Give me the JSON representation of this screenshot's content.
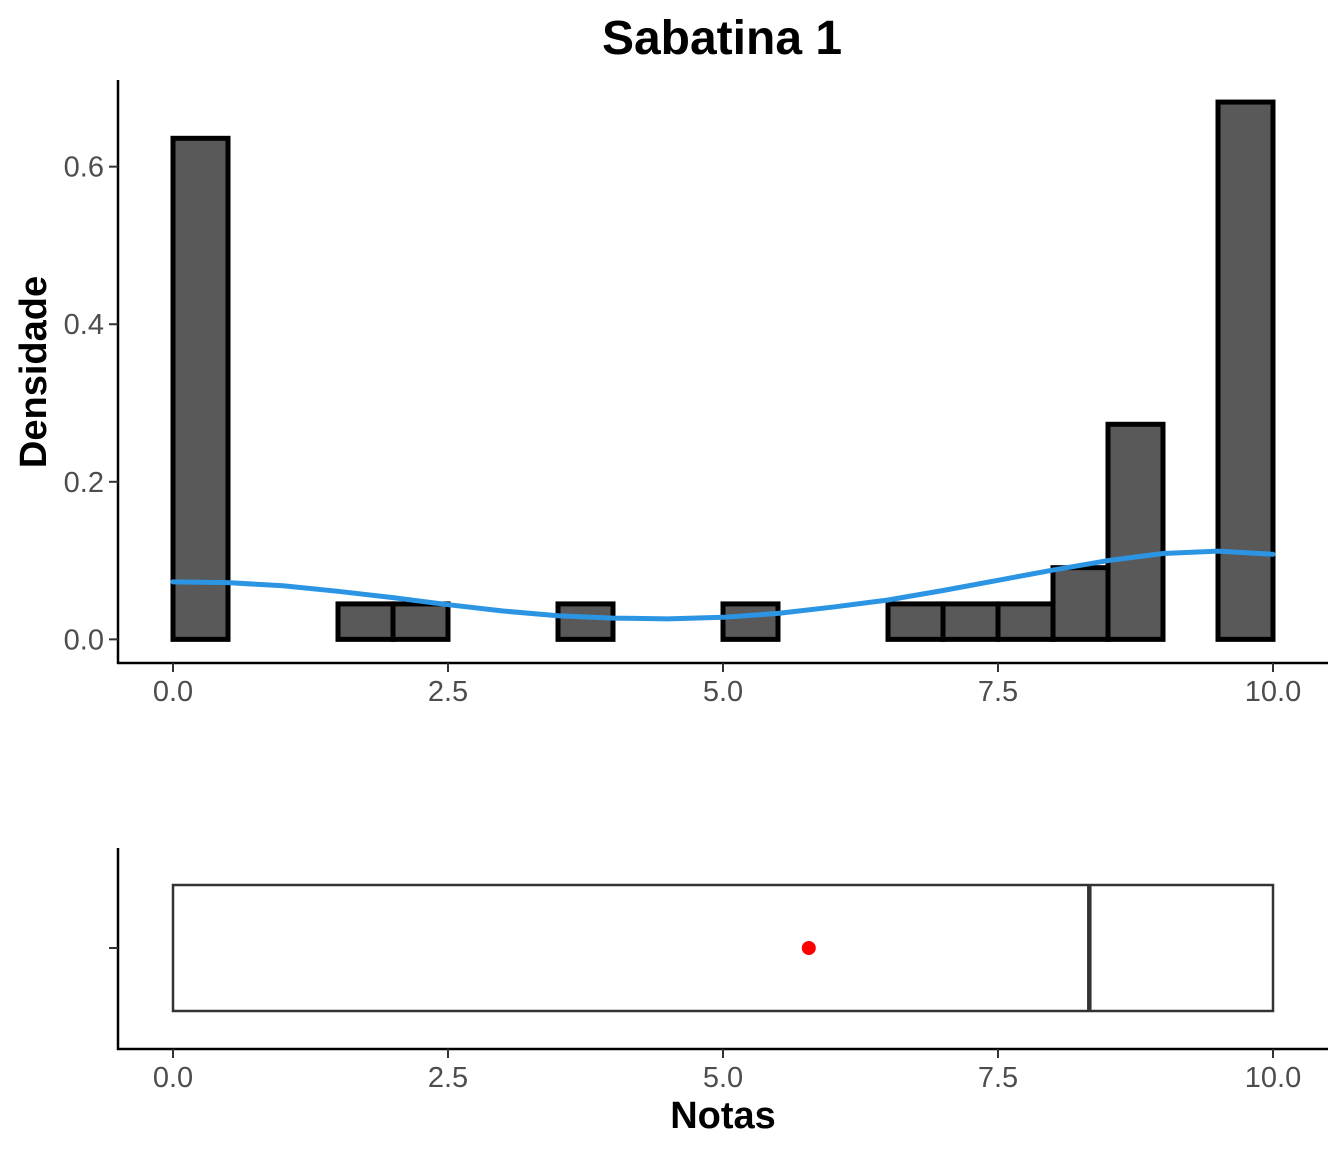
{
  "chart_data": [
    {
      "type": "bar",
      "title": "Sabatina 1",
      "xlabel": "",
      "ylabel": "Densidade",
      "xlim": [
        -0.5,
        10.5
      ],
      "ylim": [
        -0.03,
        0.71
      ],
      "x_ticks": [
        0.0,
        2.5,
        5.0,
        7.5,
        10.0
      ],
      "x_tick_labels": [
        "0.0",
        "2.5",
        "5.0",
        "7.5",
        "10.0"
      ],
      "y_ticks": [
        0.0,
        0.2,
        0.4,
        0.6
      ],
      "y_tick_labels": [
        "0.0",
        "0.2",
        "0.4",
        "0.6"
      ],
      "bin_width": 0.5,
      "bins": [
        {
          "start": 0.0,
          "end": 0.5,
          "density": 0.636
        },
        {
          "start": 0.5,
          "end": 1.0,
          "density": 0.0
        },
        {
          "start": 1.0,
          "end": 1.5,
          "density": 0.0
        },
        {
          "start": 1.5,
          "end": 2.0,
          "density": 0.045
        },
        {
          "start": 2.0,
          "end": 2.5,
          "density": 0.045
        },
        {
          "start": 2.5,
          "end": 3.0,
          "density": 0.0
        },
        {
          "start": 3.0,
          "end": 3.5,
          "density": 0.0
        },
        {
          "start": 3.5,
          "end": 4.0,
          "density": 0.045
        },
        {
          "start": 4.0,
          "end": 4.5,
          "density": 0.0
        },
        {
          "start": 4.5,
          "end": 5.0,
          "density": 0.0
        },
        {
          "start": 5.0,
          "end": 5.5,
          "density": 0.045
        },
        {
          "start": 5.5,
          "end": 6.0,
          "density": 0.0
        },
        {
          "start": 6.0,
          "end": 6.5,
          "density": 0.0
        },
        {
          "start": 6.5,
          "end": 7.0,
          "density": 0.045
        },
        {
          "start": 7.0,
          "end": 7.5,
          "density": 0.045
        },
        {
          "start": 7.5,
          "end": 8.0,
          "density": 0.045
        },
        {
          "start": 8.0,
          "end": 8.5,
          "density": 0.091
        },
        {
          "start": 8.5,
          "end": 9.0,
          "density": 0.273
        },
        {
          "start": 9.0,
          "end": 9.5,
          "density": 0.0
        },
        {
          "start": 9.5,
          "end": 10.0,
          "density": 0.682
        }
      ],
      "density_curve": {
        "color": "#2b95e3",
        "x": [
          0.0,
          0.5,
          1.0,
          1.5,
          2.0,
          2.5,
          3.0,
          3.5,
          4.0,
          4.5,
          5.0,
          5.5,
          6.0,
          6.5,
          7.0,
          7.5,
          8.0,
          8.5,
          9.0,
          9.5,
          10.0
        ],
        "y": [
          0.073,
          0.072,
          0.068,
          0.061,
          0.053,
          0.044,
          0.036,
          0.03,
          0.027,
          0.026,
          0.028,
          0.033,
          0.041,
          0.05,
          0.062,
          0.075,
          0.088,
          0.1,
          0.109,
          0.112,
          0.108
        ]
      },
      "bar_fill": "#595959",
      "bar_stroke": "#000000",
      "grid": false
    },
    {
      "type": "boxplot",
      "xlabel": "Notas",
      "xlim": [
        -0.5,
        10.5
      ],
      "x_ticks": [
        0.0,
        2.5,
        5.0,
        7.5,
        10.0
      ],
      "x_tick_labels": [
        "0.0",
        "2.5",
        "5.0",
        "7.5",
        "10.0"
      ],
      "min": 0.0,
      "q1": 0.0,
      "median": 8.33,
      "q3": 10.0,
      "max": 10.0,
      "mean": 5.78,
      "mean_color": "#ff0000",
      "box_stroke": "#333333",
      "grid": false
    }
  ]
}
